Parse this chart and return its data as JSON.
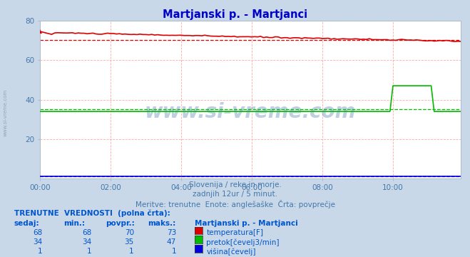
{
  "title": "Martjanski p. - Martjanci",
  "subtitle1": "Slovenija / reke in morje.",
  "subtitle2": "zadnjih 12ur / 5 minut.",
  "subtitle3": "Meritve: trenutne  Enote: anglešaške  Črta: povprečje",
  "bg_color": "#c8d8e8",
  "plot_bg_color": "#ffffff",
  "grid_color": "#ffaaaa",
  "ylim": [
    0,
    80
  ],
  "xlim": [
    0,
    143
  ],
  "yticks": [
    20,
    40,
    60,
    80
  ],
  "xtick_positions": [
    0,
    24,
    48,
    72,
    96,
    120
  ],
  "xtick_labels": [
    "00:00",
    "02:00",
    "04:00",
    "06:00",
    "08:00",
    "10:00"
  ],
  "temp_color": "#dd0000",
  "flow_color": "#00bb00",
  "height_color": "#0000dd",
  "avg_temp": 70,
  "avg_flow": 35,
  "avg_height": 1,
  "watermark": "www.si-vreme.com",
  "watermark_color": "#4477aa",
  "watermark_alpha": 0.35,
  "title_color": "#0000cc",
  "text_color": "#4477aa",
  "table_color": "#0055cc"
}
